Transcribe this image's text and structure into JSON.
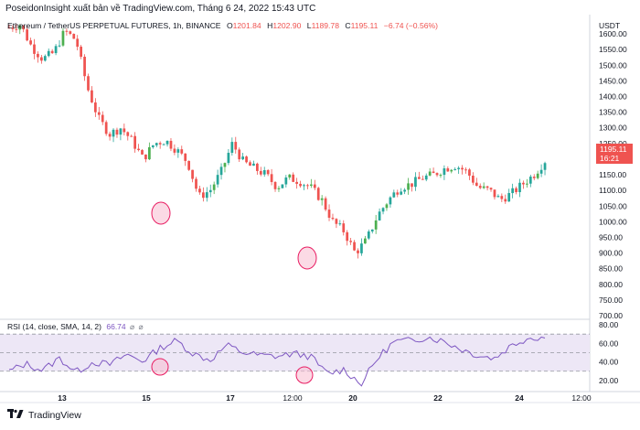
{
  "header": {
    "publisher_line": "PoseidonInsight xuất bản về TradingView.com, Tháng 6 24, 2022 15:43 UTC"
  },
  "symbol_line": {
    "title": "Ethereum / TetherUS PERPETUAL FUTURES, 1h, BINANCE",
    "o_label": "O",
    "o_value": "1201.84",
    "h_label": "H",
    "h_value": "1202.90",
    "l_label": "L",
    "l_value": "1189.78",
    "c_label": "C",
    "c_value": "1195.11",
    "change": "−6.74 (−0.56%)"
  },
  "price_axis": {
    "currency": "USDT",
    "ticks": [
      "1600.00",
      "1550.00",
      "1500.00",
      "1450.00",
      "1400.00",
      "1350.00",
      "1300.00",
      "1250.00",
      "1200.00",
      "1150.00",
      "1100.00",
      "1050.00",
      "1000.00",
      "950.00",
      "900.00",
      "850.00",
      "800.00",
      "750.00",
      "700.00"
    ],
    "last_price_label": "1195.11",
    "last_price_time": "16:21"
  },
  "rsi": {
    "label": "RSI (14, close, SMA, 14, 2)",
    "value": "66.74",
    "ticks": [
      "80.00",
      "60.00",
      "40.00",
      "20.00"
    ]
  },
  "time_axis": {
    "ticks": [
      "13",
      "15",
      "17",
      "12:00",
      "20",
      "22",
      "24",
      "12:00"
    ]
  },
  "footer": {
    "brand": "TradingView"
  },
  "colors": {
    "up": "#26a69a",
    "up_alt": "#4caf50",
    "down": "#ef5350",
    "rsi_line": "#7e57c2",
    "rsi_band": "#ede7f6",
    "highlight": "#f48fb1"
  },
  "chart_data": {
    "type": "candlestick",
    "title": "Ethereum / TetherUS PERPETUAL FUTURES, 1h, BINANCE",
    "y_range": [
      700,
      1650
    ],
    "close_path": [
      [
        0,
        1620
      ],
      [
        2,
        1630
      ],
      [
        4,
        1560
      ],
      [
        6,
        1520
      ],
      [
        8,
        1540
      ],
      [
        10,
        1610
      ],
      [
        12,
        1580
      ],
      [
        14,
        1430
      ],
      [
        16,
        1330
      ],
      [
        18,
        1280
      ],
      [
        20,
        1300
      ],
      [
        22,
        1260
      ],
      [
        24,
        1200
      ],
      [
        26,
        1250
      ],
      [
        28,
        1260
      ],
      [
        30,
        1230
      ],
      [
        32,
        1190
      ],
      [
        34,
        1080
      ],
      [
        36,
        1100
      ],
      [
        38,
        1160
      ],
      [
        40,
        1250
      ],
      [
        42,
        1190
      ],
      [
        44,
        1170
      ],
      [
        46,
        1150
      ],
      [
        48,
        1110
      ],
      [
        50,
        1140
      ],
      [
        52,
        1130
      ],
      [
        54,
        1110
      ],
      [
        56,
        1070
      ],
      [
        58,
        1000
      ],
      [
        60,
        970
      ],
      [
        62,
        900
      ],
      [
        64,
        940
      ],
      [
        66,
        1020
      ],
      [
        68,
        1070
      ],
      [
        70,
        1110
      ],
      [
        72,
        1120
      ],
      [
        74,
        1140
      ],
      [
        76,
        1150
      ],
      [
        78,
        1170
      ],
      [
        80,
        1180
      ],
      [
        82,
        1160
      ],
      [
        84,
        1110
      ],
      [
        86,
        1100
      ],
      [
        88,
        1070
      ],
      [
        90,
        1090
      ],
      [
        92,
        1120
      ],
      [
        94,
        1150
      ],
      [
        96,
        1195
      ]
    ],
    "rsi_path": [
      [
        0,
        30
      ],
      [
        3,
        38
      ],
      [
        6,
        31
      ],
      [
        9,
        44
      ],
      [
        12,
        29
      ],
      [
        15,
        40
      ],
      [
        18,
        37
      ],
      [
        21,
        48
      ],
      [
        24,
        41
      ],
      [
        27,
        55
      ],
      [
        30,
        63
      ],
      [
        33,
        49
      ],
      [
        36,
        42
      ],
      [
        39,
        58
      ],
      [
        42,
        50
      ],
      [
        45,
        47
      ],
      [
        48,
        46
      ],
      [
        51,
        49
      ],
      [
        54,
        46
      ],
      [
        57,
        27
      ],
      [
        60,
        32
      ],
      [
        63,
        16
      ],
      [
        66,
        44
      ],
      [
        69,
        62
      ],
      [
        72,
        63
      ],
      [
        75,
        67
      ],
      [
        78,
        62
      ],
      [
        81,
        54
      ],
      [
        84,
        47
      ],
      [
        87,
        44
      ],
      [
        90,
        58
      ],
      [
        93,
        66
      ],
      [
        96,
        66.74
      ]
    ],
    "rsi_range": [
      10,
      85
    ],
    "rsi_levels": [
      70,
      50,
      30
    ]
  }
}
